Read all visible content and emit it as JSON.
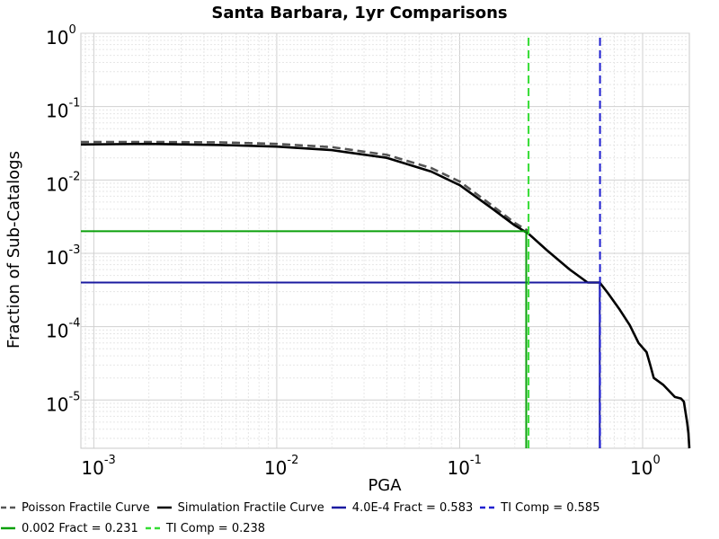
{
  "chart_data": {
    "type": "line",
    "title": "Santa Barbara, 1yr Comparisons",
    "xlabel": "PGA",
    "ylabel": "Fraction of Sub-Catalogs",
    "x_scale": "log",
    "y_scale": "log",
    "xlim": [
      0.00085,
      1.8
    ],
    "ylim": [
      2.2e-06,
      1
    ],
    "x_ticks": [
      {
        "value": 0.001,
        "base": "10",
        "exp": "-3"
      },
      {
        "value": 0.01,
        "base": "10",
        "exp": "-2"
      },
      {
        "value": 0.1,
        "base": "10",
        "exp": "-1"
      },
      {
        "value": 1,
        "base": "10",
        "exp": "0"
      }
    ],
    "y_ticks": [
      {
        "value": 1,
        "base": "10",
        "exp": "0"
      },
      {
        "value": 0.1,
        "base": "10",
        "exp": "-1"
      },
      {
        "value": 0.01,
        "base": "10",
        "exp": "-2"
      },
      {
        "value": 0.001,
        "base": "10",
        "exp": "-3"
      },
      {
        "value": 0.0001,
        "base": "10",
        "exp": "-4"
      },
      {
        "value": 1e-05,
        "base": "10",
        "exp": "-5"
      }
    ],
    "grid": true,
    "legend_position": "bottom",
    "series": [
      {
        "name": "Poisson Fractile Curve",
        "color": "#555555",
        "style": "dashed",
        "x": [
          0.00085,
          0.002,
          0.005,
          0.01,
          0.02,
          0.04,
          0.07,
          0.1,
          0.15,
          0.2,
          0.238
        ],
        "y": [
          0.033,
          0.033,
          0.0325,
          0.031,
          0.028,
          0.022,
          0.0145,
          0.0095,
          0.0045,
          0.0026,
          0.002
        ]
      },
      {
        "name": "Simulation Fractile Curve",
        "color": "#000000",
        "style": "solid",
        "x": [
          0.00085,
          0.002,
          0.005,
          0.01,
          0.02,
          0.04,
          0.07,
          0.1,
          0.15,
          0.2,
          0.238,
          0.3,
          0.4,
          0.5,
          0.583,
          0.65,
          0.75,
          0.85,
          0.95,
          1.05,
          1.1,
          1.15,
          1.3,
          1.5,
          1.62,
          1.68,
          1.72,
          1.75,
          1.78,
          1.8
        ],
        "y": [
          0.0305,
          0.031,
          0.03,
          0.0285,
          0.0255,
          0.02,
          0.013,
          0.0085,
          0.0041,
          0.0024,
          0.00185,
          0.0011,
          0.0006,
          0.0004,
          0.0004,
          0.00028,
          0.00017,
          0.000105,
          6e-05,
          4.5e-05,
          3e-05,
          2e-05,
          1.6e-05,
          1.1e-05,
          1.05e-05,
          9.5e-06,
          6.5e-06,
          5e-06,
          3.5e-06,
          2.2e-06
        ]
      },
      {
        "name": "4.0E-4 Fract = 0.583",
        "color": "#1a1aa0",
        "style": "solid",
        "x": [
          0.00085,
          0.583,
          0.583
        ],
        "y": [
          0.0004,
          0.0004,
          2.2e-06
        ]
      },
      {
        "name": "TI Comp = 0.585",
        "color": "#2020d0",
        "style": "dashed",
        "x": [
          0.585,
          0.585
        ],
        "y": [
          2.2e-06,
          1
        ]
      },
      {
        "name": "0.002 Fract = 0.231",
        "color": "#0aa00a",
        "style": "solid",
        "x": [
          0.00085,
          0.231,
          0.231
        ],
        "y": [
          0.002,
          0.002,
          2.2e-06
        ]
      },
      {
        "name": "TI Comp = 0.238",
        "color": "#33dd33",
        "style": "dashed",
        "x": [
          0.238,
          0.238
        ],
        "y": [
          2.2e-06,
          1
        ]
      }
    ]
  }
}
